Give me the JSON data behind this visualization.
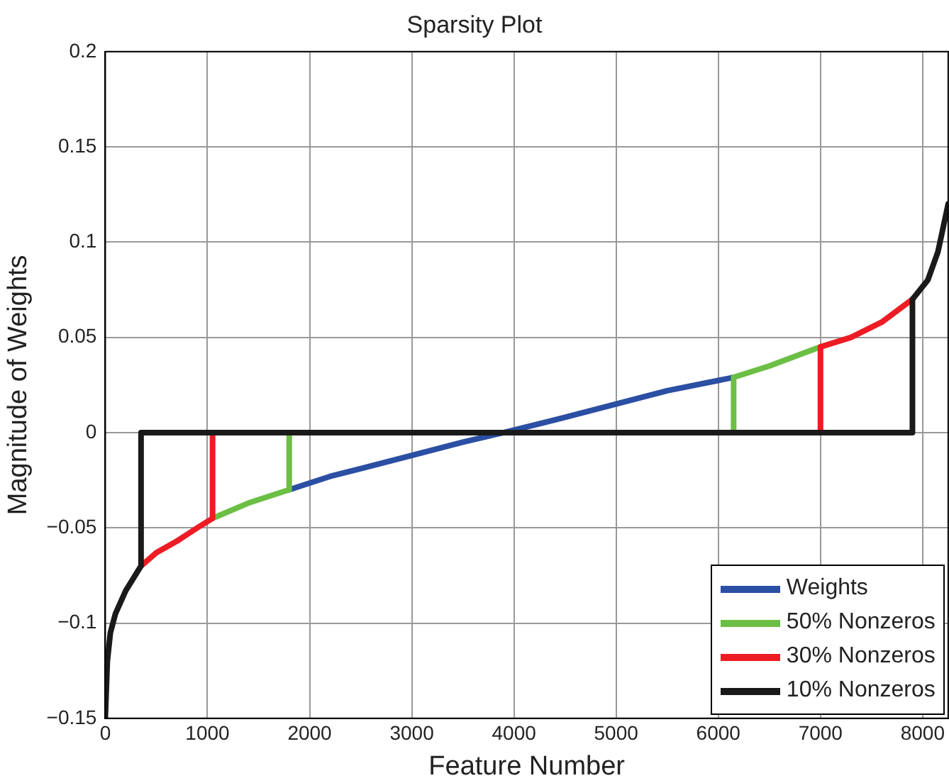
{
  "chart_data": {
    "type": "line",
    "title": "Sparsity Plot",
    "xlabel": "Feature Number",
    "ylabel": "Magnitude of Weights",
    "xlim": [
      0,
      8250
    ],
    "ylim": [
      -0.15,
      0.2
    ],
    "xticks": [
      0,
      1000,
      2000,
      3000,
      4000,
      5000,
      6000,
      7000,
      8000
    ],
    "yticks": [
      -0.15,
      -0.1,
      -0.05,
      0,
      0.05,
      0.1,
      0.15,
      0.2
    ],
    "grid": true,
    "legend": "bottom right",
    "marker": "none",
    "line_style": "solid",
    "series": [
      {
        "name": "Weights",
        "color": "#2b4fa3",
        "x": [
          1800,
          2200,
          3000,
          3500,
          3900,
          4500,
          5000,
          5500,
          6150
        ],
        "values": [
          -0.03,
          -0.023,
          -0.012,
          -0.005,
          0,
          0.008,
          0.015,
          0.022,
          0.029
        ]
      },
      {
        "name": "50% Nonzeros",
        "color": "#6cbf45",
        "x": [
          1050,
          1400,
          1800,
          1800,
          null,
          6150,
          6150,
          6500,
          7000
        ],
        "values": [
          -0.045,
          -0.037,
          -0.03,
          0,
          null,
          0,
          0.029,
          0.035,
          0.045
        ]
      },
      {
        "name": "30% Nonzeros",
        "color": "#ed1c24",
        "x": [
          350,
          500,
          700,
          900,
          1050,
          1050,
          null,
          7000,
          7000,
          7300,
          7600,
          7900
        ],
        "values": [
          -0.07,
          -0.063,
          -0.057,
          -0.05,
          -0.045,
          0,
          null,
          0,
          0.045,
          0.05,
          0.058,
          0.07
        ]
      },
      {
        "name": "10% Nonzeros",
        "color": "#1a1a1a",
        "x": [
          0,
          20,
          50,
          100,
          200,
          350,
          350,
          7900,
          7900,
          8050,
          8150,
          8250
        ],
        "values": [
          -0.15,
          -0.12,
          -0.105,
          -0.095,
          -0.083,
          -0.07,
          0,
          0,
          0.07,
          0.08,
          0.095,
          0.12
        ]
      }
    ]
  }
}
